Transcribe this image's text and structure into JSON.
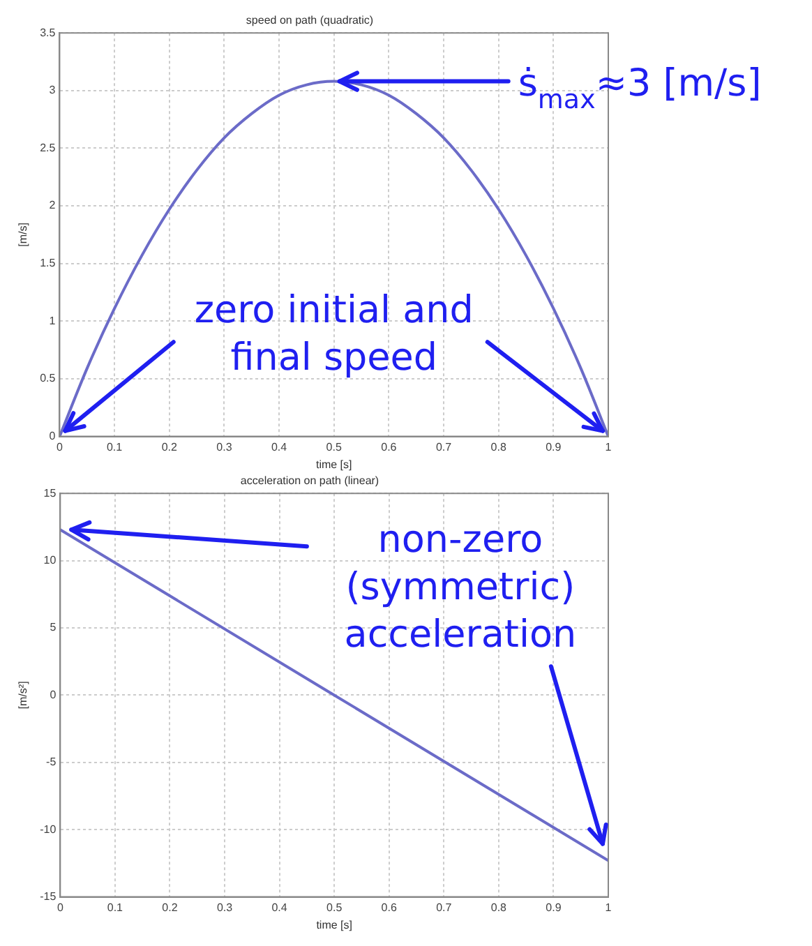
{
  "chart_data": [
    {
      "type": "line",
      "title": "speed on path (quadratic)",
      "xlabel": "time [s]",
      "ylabel": "[m/s]",
      "x": [
        0,
        0.05,
        0.1,
        0.15,
        0.2,
        0.25,
        0.3,
        0.35,
        0.4,
        0.45,
        0.5,
        0.55,
        0.6,
        0.65,
        0.7,
        0.75,
        0.8,
        0.85,
        0.9,
        0.95,
        1
      ],
      "values": [
        0,
        0.59,
        1.11,
        1.57,
        1.97,
        2.31,
        2.59,
        2.8,
        2.96,
        3.05,
        3.08,
        3.05,
        2.96,
        2.8,
        2.59,
        2.31,
        1.97,
        1.57,
        1.11,
        0.59,
        0
      ],
      "color": "#6b6bc8",
      "xlim": [
        0,
        1
      ],
      "xticks": [
        0,
        0.1,
        0.2,
        0.3,
        0.4,
        0.5,
        0.6,
        0.7,
        0.8,
        0.9,
        1
      ],
      "ylim": [
        0,
        3.5
      ],
      "yticks": [
        0,
        0.5,
        1,
        1.5,
        2,
        2.5,
        3,
        3.5
      ],
      "grid": true,
      "annotations": [
        {
          "text": "ṡ$_{max}$≈3 [m/s]",
          "x": 0.5,
          "y": 3.08
        },
        {
          "text": "zero initial and final speed",
          "x": 0,
          "y": 0
        }
      ]
    },
    {
      "type": "line",
      "title": "acceleration on path (linear)",
      "xlabel": "time [s]",
      "ylabel": "[m/s²]",
      "x": [
        0,
        1
      ],
      "values": [
        12.3,
        -12.3
      ],
      "color": "#6b6bc8",
      "xlim": [
        0,
        1
      ],
      "xticks": [
        0,
        0.1,
        0.2,
        0.3,
        0.4,
        0.5,
        0.6,
        0.7,
        0.8,
        0.9,
        1
      ],
      "ylim": [
        -15,
        15
      ],
      "yticks": [
        -15,
        -10,
        -5,
        0,
        5,
        10,
        15
      ],
      "grid": true,
      "annotations": [
        "non-zero (symmetric) acceleration"
      ]
    }
  ]
}
